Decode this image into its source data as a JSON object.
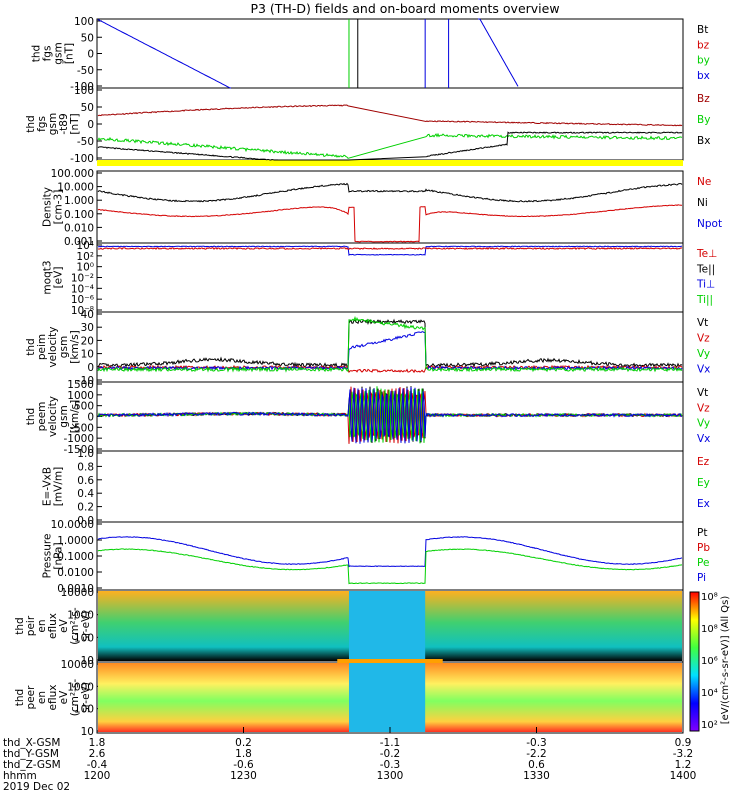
{
  "title": "P3 (TH-D) fields and on-board moments overview",
  "colors": {
    "black": "#000000",
    "red": "#d40000",
    "green": "#00d000",
    "blue": "#0000e0",
    "darkred": "#a00000",
    "yellow": "#ffff00"
  },
  "chart_data": [
    {
      "type": "line",
      "ylabel": [
        "thd",
        "fgs",
        "gsm",
        "[nT]"
      ],
      "yticks": [
        "100",
        "50",
        "0",
        "-50",
        "-100"
      ],
      "ylim": [
        -100,
        100
      ],
      "legend": [
        {
          "name": "Bt",
          "color": "black"
        },
        {
          "name": "bz",
          "color": "red"
        },
        {
          "name": "by",
          "color": "green"
        },
        {
          "name": "bx",
          "color": "blue"
        }
      ]
    },
    {
      "type": "line",
      "ylabel": [
        "thd",
        "fgs",
        "gsm",
        "-t89",
        "[nT]"
      ],
      "yticks": [
        "100",
        "50",
        "0",
        "-50",
        "-100"
      ],
      "ylim": [
        -120,
        120
      ],
      "legend": [
        {
          "name": "Bz",
          "color": "darkred"
        },
        {
          "name": "By",
          "color": "green"
        },
        {
          "name": "Bx",
          "color": "black"
        }
      ]
    },
    {
      "type": "line",
      "ylabel": [
        "Density",
        "[cm-3]"
      ],
      "yticks": [
        "100.000",
        "10.000",
        "1.000",
        "0.100",
        "0.010",
        "0.001"
      ],
      "scale": "log",
      "legend": [
        {
          "name": "Ne",
          "color": "red"
        },
        {
          "name": "Ni",
          "color": "black"
        },
        {
          "name": "Npot",
          "color": "blue"
        }
      ]
    },
    {
      "type": "line",
      "ylabel": [
        "moqt3",
        "[eV]"
      ],
      "yticks": [
        "10⁴",
        "10²",
        "10⁰",
        "10⁻²",
        "10⁻⁴",
        "10⁻⁶",
        "10⁻⁸"
      ],
      "scale": "log",
      "legend": [
        {
          "name": "Te⊥",
          "color": "red"
        },
        {
          "name": "Te||",
          "color": "black"
        },
        {
          "name": "Ti⊥",
          "color": "blue"
        },
        {
          "name": "Ti||",
          "color": "green"
        }
      ]
    },
    {
      "type": "line",
      "ylabel": [
        "thd",
        "peim",
        "velocity",
        "gsm",
        "[km/s]"
      ],
      "yticks": [
        "40",
        "30",
        "20",
        "10",
        "0",
        "-10"
      ],
      "ylim": [
        -10,
        40
      ],
      "legend": [
        {
          "name": "Vt",
          "color": "black"
        },
        {
          "name": "Vz",
          "color": "red"
        },
        {
          "name": "Vy",
          "color": "green"
        },
        {
          "name": "Vx",
          "color": "blue"
        }
      ]
    },
    {
      "type": "line",
      "ylabel": [
        "thd",
        "peem",
        "velocity",
        "gsm",
        "[km/s]"
      ],
      "yticks": [
        "1500",
        "1000",
        "500",
        "0",
        "-500",
        "-1000",
        "-1500"
      ],
      "ylim": [
        -1500,
        1500
      ],
      "legend": [
        {
          "name": "Vt",
          "color": "black"
        },
        {
          "name": "Vz",
          "color": "red"
        },
        {
          "name": "Vy",
          "color": "green"
        },
        {
          "name": "Vx",
          "color": "blue"
        }
      ]
    },
    {
      "type": "line",
      "ylabel": [
        "E=-VxB",
        "[mV/m]"
      ],
      "yticks": [
        "1.0",
        "0.8",
        "0.6",
        "0.4",
        "0.2",
        "0.0"
      ],
      "ylim": [
        0,
        1
      ],
      "legend": [
        {
          "name": "Ez",
          "color": "red"
        },
        {
          "name": "Ey",
          "color": "green"
        },
        {
          "name": "Ex",
          "color": "blue"
        }
      ]
    },
    {
      "type": "line",
      "ylabel": [
        "Pressure",
        "[nPa]"
      ],
      "yticks": [
        "10.0000",
        "1.0000",
        "0.1000",
        "0.0100",
        "0.0010"
      ],
      "scale": "log",
      "legend": [
        {
          "name": "Pt",
          "color": "black"
        },
        {
          "name": "Pb",
          "color": "red"
        },
        {
          "name": "Pe",
          "color": "green"
        },
        {
          "name": "Pi",
          "color": "blue"
        }
      ]
    },
    {
      "type": "heatmap",
      "ylabel": [
        "thd",
        "peir",
        "en",
        "eflux",
        "eV",
        "(cm²-s-",
        "sr-eV)"
      ],
      "yticks": [
        "10000",
        "1000",
        "100",
        "10"
      ],
      "scale": "log"
    },
    {
      "type": "heatmap",
      "ylabel": [
        "thd",
        "peer",
        "en",
        "eflux",
        "eV",
        "(cm²-s-",
        "sr-eV)"
      ],
      "yticks": [
        "10000",
        "1000",
        "100",
        "10"
      ],
      "scale": "log"
    }
  ],
  "colorbar": {
    "ticks": [
      "10⁸",
      "10⁸",
      "10⁶",
      "10⁴",
      "10²"
    ],
    "label": "[eV/(cm²-s-sr-eV)] (All Qs)",
    "label2": "[eV/(cm²-s-sr-eV)] (All Qs)"
  },
  "xaxis": {
    "rows": [
      {
        "label": "thd_X-GSM",
        "values": [
          "1.8",
          "0.2",
          "-1.1",
          "-0.3",
          "0.9"
        ]
      },
      {
        "label": "thd_Y-GSM",
        "values": [
          "2.6",
          "1.8",
          "-0.2",
          "-2.2",
          "-3.2"
        ]
      },
      {
        "label": "thd_Z-GSM",
        "values": [
          "-0.4",
          "-0.6",
          "-0.3",
          "0.6",
          "1.2"
        ]
      },
      {
        "label": "hhmm",
        "values": [
          "1200",
          "1230",
          "1300",
          "1330",
          "1400"
        ]
      }
    ],
    "date": "2019 Dec 02"
  }
}
